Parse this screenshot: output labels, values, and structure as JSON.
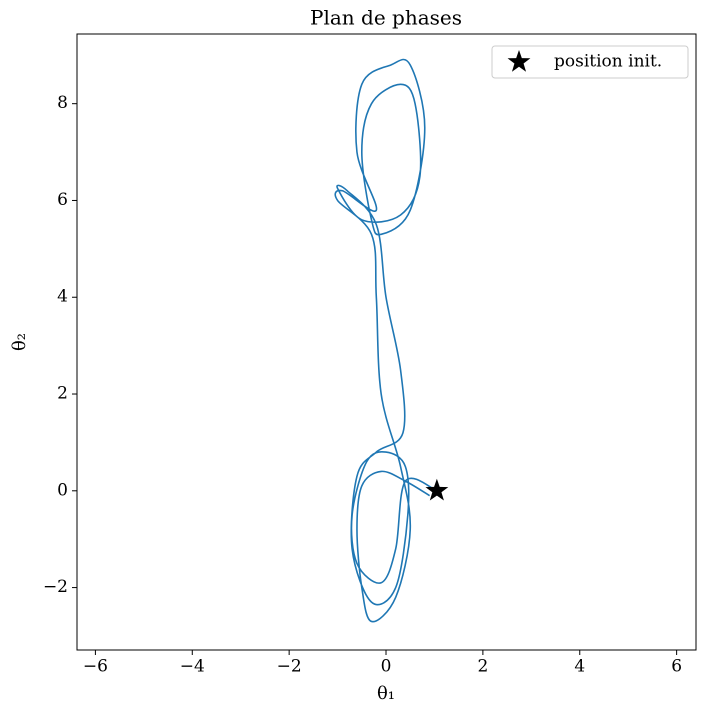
{
  "chart_data": {
    "type": "line",
    "title": "Plan de phases",
    "xlabel": "θ₁",
    "ylabel": "θ₂",
    "xlim": [
      -6.38,
      6.4
    ],
    "ylim": [
      -3.29,
      9.44
    ],
    "xticks": [
      {
        "value": -6,
        "label": "−6"
      },
      {
        "value": -4,
        "label": "−4"
      },
      {
        "value": -2,
        "label": "−2"
      },
      0,
      2,
      4,
      6
    ],
    "yticks": [
      {
        "value": -2,
        "label": "−2"
      },
      0,
      2,
      4,
      6,
      8
    ],
    "series": [
      {
        "color": "#1f77b4",
        "x": [
          1.05,
          0.4,
          0.2,
          -0.1,
          -0.6,
          -0.7,
          -0.4,
          0.0,
          0.4,
          0.45,
          0.2,
          -0.3,
          -0.7,
          -0.6,
          -0.2,
          0.35,
          0.3,
          0.0,
          -0.2,
          -0.8,
          -1.0,
          -0.5,
          0.3,
          0.7,
          0.6,
          0.3,
          -0.3,
          -0.5,
          -0.3,
          -0.1,
          0.5,
          0.8,
          0.5,
          0.1,
          -0.5,
          -0.6,
          -0.2,
          -0.9,
          -1.0,
          -0.3,
          -0.2,
          -0.1,
          0.3,
          0.5,
          0.2,
          -0.3,
          -0.5,
          -0.6,
          -0.5,
          -0.1,
          0.4,
          0.9
        ],
        "y": [
          0.0,
          0.2,
          -1.2,
          -1.9,
          -1.5,
          -0.5,
          0.6,
          0.8,
          0.5,
          -0.5,
          -2.0,
          -2.3,
          -1.2,
          0.3,
          0.8,
          1.2,
          2.5,
          4.0,
          5.5,
          6.2,
          6.25,
          5.6,
          5.7,
          6.5,
          8.0,
          8.4,
          8.0,
          7.0,
          5.6,
          5.3,
          5.8,
          7.5,
          8.8,
          8.8,
          8.4,
          7.0,
          5.8,
          6.2,
          6.0,
          5.3,
          4.0,
          2.0,
          0.5,
          -0.8,
          -2.2,
          -2.7,
          -2.0,
          -0.8,
          0.1,
          0.4,
          0.2,
          -0.1
        ]
      }
    ],
    "marker": {
      "name": "position init.",
      "x": 1.05,
      "y": 0,
      "color": "#000000"
    },
    "legend": "upper right"
  }
}
